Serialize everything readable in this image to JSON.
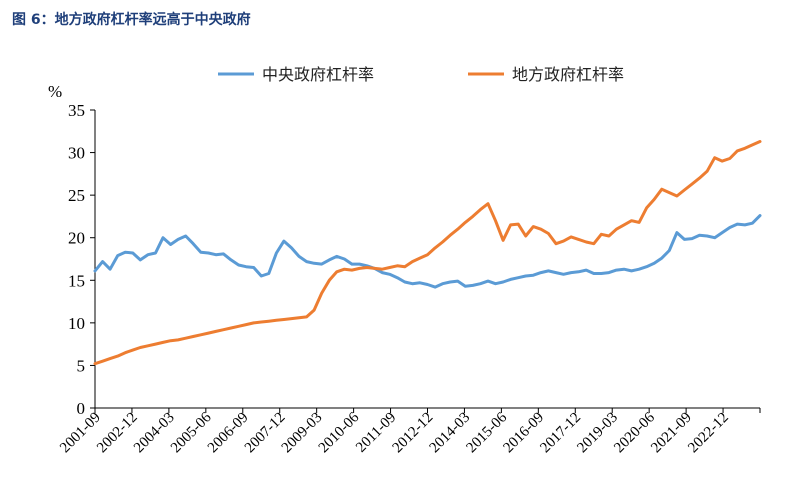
{
  "figure_title": "图 6：地方政府杠杆率远高于中央政府",
  "colors": {
    "central": "#5b9bd5",
    "local": "#ed7d31",
    "title": "#1f3f7a"
  },
  "chart_data": {
    "type": "line",
    "title": "",
    "ylabel": "%",
    "xlabel": "",
    "ylim": [
      0,
      35
    ],
    "yticks": [
      0,
      5,
      10,
      15,
      20,
      25,
      30,
      35
    ],
    "xlim": [
      2001.67,
      2023.67
    ],
    "x_tick_labels": [
      "2001-09",
      "2002-12",
      "2004-03",
      "2005-06",
      "2006-09",
      "2007-12",
      "2009-03",
      "2010-06",
      "2011-09",
      "2012-12",
      "2014-03",
      "2015-06",
      "2016-09",
      "2017-12",
      "2019-03",
      "2020-06",
      "2021-09",
      "2022-12"
    ],
    "legend_position": "top",
    "grid": false,
    "series": [
      {
        "name": "中央政府杠杆率",
        "color": "#5b9bd5",
        "points": [
          [
            2001.67,
            16.1
          ],
          [
            2001.92,
            17.2
          ],
          [
            2002.17,
            16.3
          ],
          [
            2002.42,
            17.9
          ],
          [
            2002.67,
            18.3
          ],
          [
            2002.92,
            18.2
          ],
          [
            2003.17,
            17.4
          ],
          [
            2003.42,
            18.0
          ],
          [
            2003.67,
            18.2
          ],
          [
            2003.92,
            20.0
          ],
          [
            2004.17,
            19.2
          ],
          [
            2004.42,
            19.8
          ],
          [
            2004.67,
            20.2
          ],
          [
            2004.92,
            19.3
          ],
          [
            2005.17,
            18.3
          ],
          [
            2005.42,
            18.2
          ],
          [
            2005.67,
            18.0
          ],
          [
            2005.92,
            18.1
          ],
          [
            2006.17,
            17.4
          ],
          [
            2006.42,
            16.8
          ],
          [
            2006.67,
            16.6
          ],
          [
            2006.92,
            16.5
          ],
          [
            2007.17,
            15.5
          ],
          [
            2007.42,
            15.8
          ],
          [
            2007.67,
            18.2
          ],
          [
            2007.92,
            19.6
          ],
          [
            2008.17,
            18.8
          ],
          [
            2008.42,
            17.8
          ],
          [
            2008.67,
            17.2
          ],
          [
            2008.92,
            17.0
          ],
          [
            2009.17,
            16.9
          ],
          [
            2009.42,
            17.4
          ],
          [
            2009.67,
            17.8
          ],
          [
            2009.92,
            17.5
          ],
          [
            2010.17,
            16.9
          ],
          [
            2010.42,
            16.9
          ],
          [
            2010.67,
            16.7
          ],
          [
            2010.92,
            16.4
          ],
          [
            2011.17,
            15.9
          ],
          [
            2011.42,
            15.7
          ],
          [
            2011.67,
            15.3
          ],
          [
            2011.92,
            14.8
          ],
          [
            2012.17,
            14.6
          ],
          [
            2012.42,
            14.7
          ],
          [
            2012.67,
            14.5
          ],
          [
            2012.92,
            14.2
          ],
          [
            2013.17,
            14.6
          ],
          [
            2013.42,
            14.8
          ],
          [
            2013.67,
            14.9
          ],
          [
            2013.92,
            14.3
          ],
          [
            2014.17,
            14.4
          ],
          [
            2014.42,
            14.6
          ],
          [
            2014.67,
            14.9
          ],
          [
            2014.92,
            14.6
          ],
          [
            2015.17,
            14.8
          ],
          [
            2015.42,
            15.1
          ],
          [
            2015.67,
            15.3
          ],
          [
            2015.92,
            15.5
          ],
          [
            2016.17,
            15.6
          ],
          [
            2016.42,
            15.9
          ],
          [
            2016.67,
            16.1
          ],
          [
            2016.92,
            15.9
          ],
          [
            2017.17,
            15.7
          ],
          [
            2017.42,
            15.9
          ],
          [
            2017.67,
            16.0
          ],
          [
            2017.92,
            16.2
          ],
          [
            2018.17,
            15.8
          ],
          [
            2018.42,
            15.8
          ],
          [
            2018.67,
            15.9
          ],
          [
            2018.92,
            16.2
          ],
          [
            2019.17,
            16.3
          ],
          [
            2019.42,
            16.1
          ],
          [
            2019.67,
            16.3
          ],
          [
            2019.92,
            16.6
          ],
          [
            2020.17,
            17.0
          ],
          [
            2020.42,
            17.6
          ],
          [
            2020.67,
            18.5
          ],
          [
            2020.92,
            20.6
          ],
          [
            2021.17,
            19.8
          ],
          [
            2021.42,
            19.9
          ],
          [
            2021.67,
            20.3
          ],
          [
            2021.92,
            20.2
          ],
          [
            2022.17,
            20.0
          ],
          [
            2022.42,
            20.6
          ],
          [
            2022.67,
            21.2
          ],
          [
            2022.92,
            21.6
          ],
          [
            2023.17,
            21.5
          ],
          [
            2023.42,
            21.7
          ],
          [
            2023.67,
            22.6
          ]
        ]
      },
      {
        "name": "地方政府杠杆率",
        "color": "#ed7d31",
        "points": [
          [
            2001.67,
            5.2
          ],
          [
            2001.92,
            5.5
          ],
          [
            2002.17,
            5.8
          ],
          [
            2002.42,
            6.1
          ],
          [
            2002.67,
            6.5
          ],
          [
            2002.92,
            6.8
          ],
          [
            2003.17,
            7.1
          ],
          [
            2003.42,
            7.3
          ],
          [
            2003.67,
            7.5
          ],
          [
            2003.92,
            7.7
          ],
          [
            2004.17,
            7.9
          ],
          [
            2004.42,
            8.0
          ],
          [
            2004.67,
            8.2
          ],
          [
            2004.92,
            8.4
          ],
          [
            2005.17,
            8.6
          ],
          [
            2005.42,
            8.8
          ],
          [
            2005.67,
            9.0
          ],
          [
            2005.92,
            9.2
          ],
          [
            2006.17,
            9.4
          ],
          [
            2006.42,
            9.6
          ],
          [
            2006.67,
            9.8
          ],
          [
            2006.92,
            10.0
          ],
          [
            2007.17,
            10.1
          ],
          [
            2007.42,
            10.2
          ],
          [
            2007.67,
            10.3
          ],
          [
            2007.92,
            10.4
          ],
          [
            2008.17,
            10.5
          ],
          [
            2008.42,
            10.6
          ],
          [
            2008.67,
            10.7
          ],
          [
            2008.92,
            11.5
          ],
          [
            2009.17,
            13.5
          ],
          [
            2009.42,
            15.0
          ],
          [
            2009.67,
            16.0
          ],
          [
            2009.92,
            16.3
          ],
          [
            2010.17,
            16.2
          ],
          [
            2010.42,
            16.4
          ],
          [
            2010.67,
            16.5
          ],
          [
            2010.92,
            16.4
          ],
          [
            2011.17,
            16.3
          ],
          [
            2011.42,
            16.5
          ],
          [
            2011.67,
            16.7
          ],
          [
            2011.92,
            16.6
          ],
          [
            2012.17,
            17.2
          ],
          [
            2012.42,
            17.6
          ],
          [
            2012.67,
            18.0
          ],
          [
            2012.92,
            18.8
          ],
          [
            2013.17,
            19.5
          ],
          [
            2013.42,
            20.3
          ],
          [
            2013.67,
            21.0
          ],
          [
            2013.92,
            21.8
          ],
          [
            2014.17,
            22.5
          ],
          [
            2014.42,
            23.3
          ],
          [
            2014.67,
            24.0
          ],
          [
            2014.92,
            22.0
          ],
          [
            2015.17,
            19.7
          ],
          [
            2015.42,
            21.5
          ],
          [
            2015.67,
            21.6
          ],
          [
            2015.92,
            20.2
          ],
          [
            2016.17,
            21.3
          ],
          [
            2016.42,
            21.0
          ],
          [
            2016.67,
            20.5
          ],
          [
            2016.92,
            19.3
          ],
          [
            2017.17,
            19.6
          ],
          [
            2017.42,
            20.1
          ],
          [
            2017.67,
            19.8
          ],
          [
            2017.92,
            19.5
          ],
          [
            2018.17,
            19.3
          ],
          [
            2018.42,
            20.4
          ],
          [
            2018.67,
            20.2
          ],
          [
            2018.92,
            21.0
          ],
          [
            2019.17,
            21.5
          ],
          [
            2019.42,
            22.0
          ],
          [
            2019.67,
            21.8
          ],
          [
            2019.92,
            23.5
          ],
          [
            2020.17,
            24.5
          ],
          [
            2020.42,
            25.7
          ],
          [
            2020.67,
            25.3
          ],
          [
            2020.92,
            24.9
          ],
          [
            2021.17,
            25.6
          ],
          [
            2021.42,
            26.3
          ],
          [
            2021.67,
            27.0
          ],
          [
            2021.92,
            27.8
          ],
          [
            2022.17,
            29.4
          ],
          [
            2022.42,
            29.0
          ],
          [
            2022.67,
            29.3
          ],
          [
            2022.92,
            30.2
          ],
          [
            2023.17,
            30.5
          ],
          [
            2023.42,
            30.9
          ],
          [
            2023.67,
            31.3
          ]
        ]
      }
    ]
  }
}
